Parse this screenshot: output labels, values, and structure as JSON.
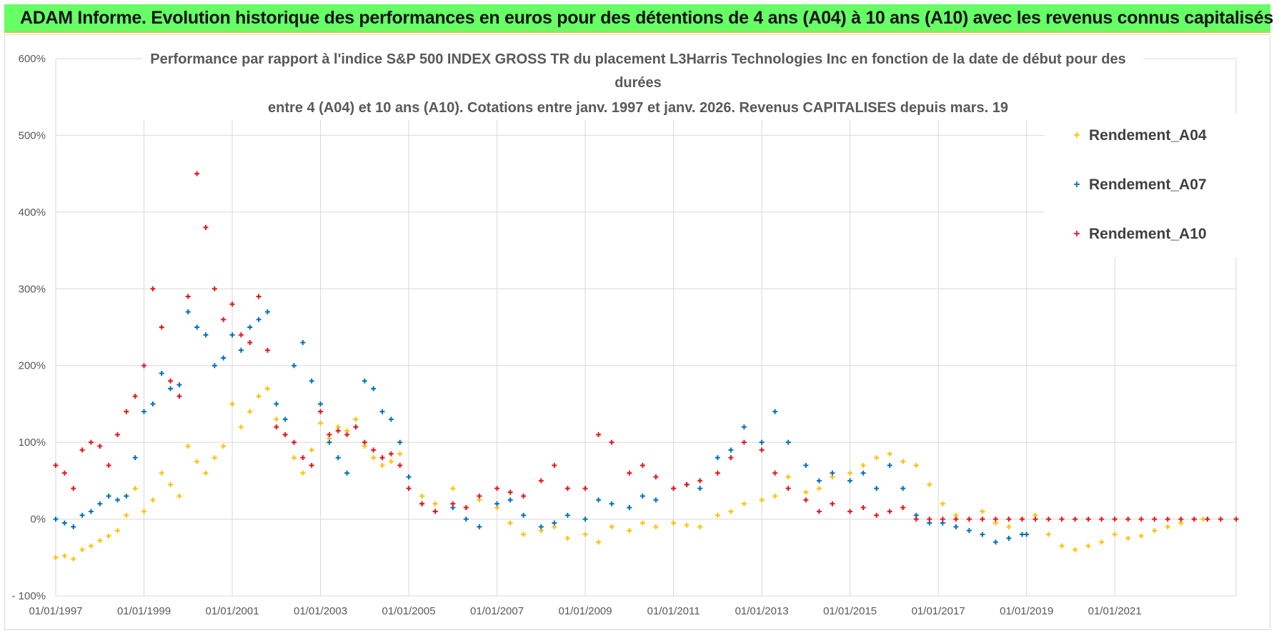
{
  "banner": {
    "text": "ADAM Informe. Evolution historique des performances en euros pour des détentions de 4 ans (A04) à 10 ans (A10) avec les revenus connus capitalisés"
  },
  "colors": {
    "banner_bg": "#66ff66",
    "A04": "#ffc000",
    "A07": "#0070c0",
    "A10": "#e8141c",
    "grid": "#d9d9d9"
  },
  "chart_data": {
    "type": "scatter",
    "title_lines": [
      "Performance par rapport à l'indice S&P 500 INDEX GROSS TR  du placement L3Harris Technologies Inc en fonction de la date de début pour des",
      "durées",
      "entre 4 (A04) et 10 ans (A10). Cotations entre janv. 1997 et janv. 2026. Revenus CAPITALISES depuis mars. 19"
    ],
    "xlabel": "",
    "ylabel": "",
    "xlim": [
      1997.0,
      2023.75
    ],
    "ylim": [
      -100,
      600
    ],
    "y_ticks": [
      -100,
      0,
      100,
      200,
      300,
      400,
      500,
      600
    ],
    "y_tick_labels": [
      "- 100%",
      "0%",
      "100%",
      "200%",
      "300%",
      "400%",
      "500%",
      "600%"
    ],
    "x_ticks": [
      1997,
      1999,
      2001,
      2003,
      2005,
      2007,
      2009,
      2011,
      2013,
      2015,
      2017,
      2019,
      2021
    ],
    "x_tick_labels": [
      "01/01/1997",
      "01/01/1999",
      "01/01/2001",
      "01/01/2003",
      "01/01/2005",
      "01/01/2007",
      "01/01/2009",
      "01/01/2011",
      "01/01/2013",
      "01/01/2015",
      "01/01/2017",
      "01/01/2019",
      "01/01/2021"
    ],
    "marker": "+",
    "legend": {
      "position": "top-right",
      "entries": [
        "Rendement_A04",
        "Rendement_A07",
        "Rendement_A10"
      ]
    },
    "series": [
      {
        "name": "Rendement_A04",
        "x": [
          1997.0,
          1997.2,
          1997.4,
          1997.6,
          1997.8,
          1998.0,
          1998.2,
          1998.4,
          1998.6,
          1998.8,
          1999.0,
          1999.2,
          1999.4,
          1999.6,
          1999.8,
          2000.0,
          2000.2,
          2000.4,
          2000.6,
          2000.8,
          2001.0,
          2001.2,
          2001.4,
          2001.6,
          2001.8,
          2002.0,
          2002.2,
          2002.4,
          2002.6,
          2002.8,
          2003.0,
          2003.2,
          2003.4,
          2003.6,
          2003.8,
          2004.0,
          2004.2,
          2004.4,
          2004.6,
          2004.8,
          2005.0,
          2005.3,
          2005.6,
          2006.0,
          2006.3,
          2006.6,
          2007.0,
          2007.3,
          2007.6,
          2008.0,
          2008.3,
          2008.6,
          2009.0,
          2009.3,
          2009.6,
          2010.0,
          2010.3,
          2010.6,
          2011.0,
          2011.3,
          2011.6,
          2012.0,
          2012.3,
          2012.6,
          2013.0,
          2013.3,
          2013.6,
          2014.0,
          2014.3,
          2014.6,
          2015.0,
          2015.3,
          2015.6,
          2015.9,
          2016.2,
          2016.5,
          2016.8,
          2017.1,
          2017.4,
          2017.7,
          2018.0,
          2018.3,
          2018.6,
          2018.9,
          2019.2,
          2019.5,
          2019.8,
          2020.1,
          2020.4,
          2020.7,
          2021.0,
          2021.3,
          2021.6,
          2021.9,
          2022.2,
          2022.5,
          2022.8,
          2023.0
        ],
        "y": [
          -50,
          -48,
          -52,
          -40,
          -35,
          -28,
          -22,
          -15,
          5,
          40,
          10,
          25,
          60,
          45,
          30,
          95,
          75,
          60,
          80,
          95,
          150,
          120,
          140,
          160,
          170,
          130,
          110,
          80,
          60,
          90,
          125,
          105,
          120,
          115,
          130,
          95,
          80,
          70,
          75,
          85,
          55,
          30,
          20,
          40,
          15,
          25,
          15,
          -5,
          -20,
          -15,
          -10,
          -25,
          -20,
          -30,
          -10,
          -15,
          -5,
          -10,
          -5,
          -8,
          -10,
          5,
          10,
          20,
          25,
          30,
          55,
          35,
          40,
          55,
          60,
          70,
          80,
          85,
          75,
          70,
          45,
          20,
          5,
          0,
          10,
          -5,
          -10,
          0,
          5,
          -20,
          -35,
          -40,
          -35,
          -30,
          -20,
          -25,
          -22,
          -15,
          -10,
          -5,
          0,
          0
        ]
      },
      {
        "name": "Rendement_A07",
        "x": [
          1997.0,
          1997.2,
          1997.4,
          1997.6,
          1997.8,
          1998.0,
          1998.2,
          1998.4,
          1998.6,
          1998.8,
          1999.0,
          1999.2,
          1999.4,
          1999.6,
          1999.8,
          2000.0,
          2000.2,
          2000.4,
          2000.6,
          2000.8,
          2001.0,
          2001.2,
          2001.4,
          2001.6,
          2001.8,
          2002.0,
          2002.2,
          2002.4,
          2002.6,
          2002.8,
          2003.0,
          2003.2,
          2003.4,
          2003.6,
          2003.8,
          2004.0,
          2004.2,
          2004.4,
          2004.6,
          2004.8,
          2005.0,
          2005.3,
          2005.6,
          2006.0,
          2006.3,
          2006.6,
          2007.0,
          2007.3,
          2007.6,
          2008.0,
          2008.3,
          2008.6,
          2009.0,
          2009.3,
          2009.6,
          2010.0,
          2010.3,
          2010.6,
          2011.0,
          2011.3,
          2011.6,
          2012.0,
          2012.3,
          2012.6,
          2013.0,
          2013.3,
          2013.6,
          2014.0,
          2014.3,
          2014.6,
          2015.0,
          2015.3,
          2015.6,
          2015.9,
          2016.2,
          2016.5,
          2016.8,
          2017.1,
          2017.4,
          2017.7,
          2018.0,
          2018.3,
          2018.6,
          2018.9,
          2019.0
        ],
        "y": [
          0,
          -5,
          -10,
          5,
          10,
          20,
          30,
          25,
          30,
          80,
          140,
          150,
          190,
          170,
          175,
          270,
          250,
          240,
          200,
          210,
          240,
          220,
          250,
          260,
          270,
          150,
          130,
          200,
          230,
          180,
          150,
          100,
          80,
          60,
          120,
          180,
          170,
          140,
          130,
          100,
          55,
          20,
          10,
          15,
          0,
          -10,
          20,
          25,
          5,
          -10,
          -5,
          5,
          0,
          25,
          20,
          15,
          30,
          25,
          40,
          45,
          40,
          80,
          90,
          120,
          100,
          140,
          100,
          70,
          50,
          60,
          50,
          60,
          40,
          70,
          40,
          5,
          -5,
          -5,
          -10,
          -15,
          -20,
          -30,
          -25,
          -20,
          -20
        ]
      },
      {
        "name": "Rendement_A10",
        "x": [
          1997.0,
          1997.2,
          1997.4,
          1997.6,
          1997.8,
          1998.0,
          1998.2,
          1998.4,
          1998.6,
          1998.8,
          1999.0,
          1999.2,
          1999.4,
          1999.6,
          1999.8,
          2000.0,
          2000.2,
          2000.4,
          2000.6,
          2000.8,
          2001.0,
          2001.2,
          2001.4,
          2001.6,
          2001.8,
          2002.0,
          2002.2,
          2002.4,
          2002.6,
          2002.8,
          2003.0,
          2003.2,
          2003.4,
          2003.6,
          2003.8,
          2004.0,
          2004.2,
          2004.4,
          2004.6,
          2004.8,
          2005.0,
          2005.3,
          2005.6,
          2006.0,
          2006.3,
          2006.6,
          2007.0,
          2007.3,
          2007.6,
          2008.0,
          2008.3,
          2008.6,
          2009.0,
          2009.3,
          2009.6,
          2010.0,
          2010.3,
          2010.6,
          2011.0,
          2011.3,
          2011.6,
          2012.0,
          2012.3,
          2012.6,
          2013.0,
          2013.3,
          2013.6,
          2014.0,
          2014.3,
          2014.6,
          2015.0,
          2015.3,
          2015.6,
          2015.9,
          2016.2,
          2016.5,
          2016.8,
          2017.1,
          2017.4,
          2017.7,
          2018.0,
          2018.3,
          2018.6,
          2018.9,
          2019.2,
          2019.5,
          2019.8,
          2020.1,
          2020.4,
          2020.7,
          2021.0,
          2021.3,
          2021.6,
          2021.9,
          2022.2,
          2022.5,
          2022.8,
          2023.1,
          2023.4,
          2023.75
        ],
        "y": [
          70,
          60,
          40,
          90,
          100,
          95,
          70,
          110,
          140,
          160,
          200,
          300,
          250,
          180,
          160,
          290,
          450,
          380,
          300,
          260,
          280,
          240,
          230,
          290,
          220,
          120,
          110,
          100,
          80,
          70,
          140,
          110,
          115,
          110,
          120,
          100,
          90,
          80,
          85,
          70,
          40,
          20,
          10,
          20,
          15,
          30,
          40,
          35,
          30,
          50,
          70,
          40,
          40,
          110,
          100,
          60,
          70,
          55,
          40,
          45,
          50,
          60,
          80,
          100,
          90,
          60,
          40,
          25,
          10,
          20,
          10,
          15,
          5,
          10,
          15,
          0,
          0,
          0,
          0,
          0,
          0,
          0,
          0,
          0,
          0,
          0,
          0,
          0,
          0,
          0,
          0,
          0,
          0,
          0,
          0,
          0,
          0,
          0,
          0,
          0
        ]
      }
    ]
  }
}
